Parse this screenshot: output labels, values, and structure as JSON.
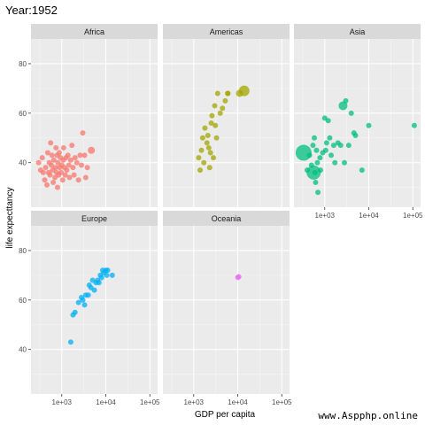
{
  "chart_data": {
    "type": "scatter",
    "title": "Year:1952",
    "xlabel": "GDP per capita",
    "ylabel": "life expecttancy",
    "x_scale": "log10",
    "xlim": [
      200,
      150000
    ],
    "ylim": [
      22,
      90
    ],
    "x_ticks": [
      1000,
      10000,
      100000
    ],
    "x_tick_labels": [
      "1e+03",
      "1e+04",
      "1e+05"
    ],
    "y_ticks": [
      40,
      60,
      80
    ],
    "y_tick_labels": [
      "40",
      "60",
      "80"
    ],
    "grid": true,
    "facets": [
      {
        "name": "Africa",
        "color": "#F8766D",
        "points": [
          [
            298,
            40
          ],
          [
            330,
            37
          ],
          [
            360,
            42
          ],
          [
            380,
            36
          ],
          [
            410,
            33
          ],
          [
            430,
            38
          ],
          [
            460,
            31
          ],
          [
            480,
            44
          ],
          [
            500,
            36
          ],
          [
            520,
            40
          ],
          [
            540,
            35
          ],
          [
            560,
            48
          ],
          [
            580,
            39
          ],
          [
            600,
            43
          ],
          [
            620,
            37
          ],
          [
            640,
            32
          ],
          [
            660,
            41
          ],
          [
            700,
            34
          ],
          [
            720,
            38
          ],
          [
            740,
            46
          ],
          [
            760,
            36
          ],
          [
            780,
            43
          ],
          [
            800,
            30
          ],
          [
            820,
            40
          ],
          [
            850,
            35
          ],
          [
            880,
            44
          ],
          [
            900,
            38
          ],
          [
            940,
            42
          ],
          [
            970,
            36
          ],
          [
            1000,
            39
          ],
          [
            1050,
            33
          ],
          [
            1080,
            41
          ],
          [
            1100,
            46
          ],
          [
            1150,
            38
          ],
          [
            1200,
            35
          ],
          [
            1250,
            42
          ],
          [
            1300,
            37
          ],
          [
            1380,
            43
          ],
          [
            1450,
            39
          ],
          [
            1500,
            34
          ],
          [
            1600,
            41
          ],
          [
            1700,
            47
          ],
          [
            1800,
            38
          ],
          [
            1900,
            35
          ],
          [
            2000,
            42
          ],
          [
            2200,
            40
          ],
          [
            2400,
            33
          ],
          [
            2600,
            43
          ],
          [
            2800,
            39
          ],
          [
            3000,
            52
          ],
          [
            3300,
            43
          ],
          [
            3500,
            34
          ],
          [
            3800,
            38
          ],
          [
            4700,
            45
          ]
        ],
        "sizes": [
          3,
          3,
          3,
          3,
          3,
          3,
          3,
          3,
          3,
          3,
          3,
          3,
          3,
          3,
          3,
          3,
          3,
          3,
          3,
          3,
          3,
          3,
          3,
          3,
          3,
          3,
          3,
          3,
          3,
          3,
          3,
          3,
          3,
          3,
          3,
          3,
          3,
          3,
          3,
          3,
          3,
          3,
          3,
          3,
          3,
          3,
          3,
          3,
          3,
          3,
          3,
          3,
          3,
          4
        ]
      },
      {
        "name": "Americas",
        "color": "#A3A500",
        "points": [
          [
            1300,
            42
          ],
          [
            1400,
            37
          ],
          [
            1500,
            45
          ],
          [
            1600,
            50
          ],
          [
            1700,
            40
          ],
          [
            1800,
            54
          ],
          [
            2000,
            48
          ],
          [
            2100,
            51
          ],
          [
            2200,
            46
          ],
          [
            2300,
            38
          ],
          [
            2400,
            44
          ],
          [
            2500,
            56
          ],
          [
            2600,
            59
          ],
          [
            2800,
            42
          ],
          [
            3000,
            63
          ],
          [
            3100,
            55
          ],
          [
            3300,
            50
          ],
          [
            3500,
            68
          ],
          [
            4000,
            60
          ],
          [
            4500,
            62
          ],
          [
            5200,
            65
          ],
          [
            5900,
            68
          ],
          [
            6000,
            68
          ],
          [
            11000,
            68
          ],
          [
            13990,
            69
          ]
        ],
        "sizes": [
          3,
          3,
          3,
          3,
          3,
          3,
          3,
          3,
          3,
          3,
          3,
          3,
          3,
          3,
          3,
          3,
          3,
          3,
          3,
          3,
          3,
          3,
          3,
          4,
          6
        ]
      },
      {
        "name": "Asia",
        "color": "#00BF7D",
        "points": [
          [
            331,
            44
          ],
          [
            400,
            37
          ],
          [
            450,
            43
          ],
          [
            500,
            39
          ],
          [
            540,
            47
          ],
          [
            560,
            36
          ],
          [
            580,
            50
          ],
          [
            600,
            36
          ],
          [
            620,
            32
          ],
          [
            650,
            45
          ],
          [
            680,
            40
          ],
          [
            700,
            28
          ],
          [
            780,
            42
          ],
          [
            800,
            37
          ],
          [
            900,
            44
          ],
          [
            1000,
            58
          ],
          [
            1050,
            45
          ],
          [
            1100,
            48
          ],
          [
            1200,
            57
          ],
          [
            1300,
            50
          ],
          [
            1400,
            43
          ],
          [
            1600,
            47
          ],
          [
            1700,
            40
          ],
          [
            2000,
            48
          ],
          [
            2300,
            47
          ],
          [
            2600,
            63
          ],
          [
            2800,
            40
          ],
          [
            3000,
            65
          ],
          [
            3500,
            47
          ],
          [
            4000,
            60
          ],
          [
            5000,
            51
          ],
          [
            7000,
            37
          ],
          [
            10000,
            55
          ],
          [
            108000,
            55
          ],
          [
            4600,
            52
          ]
        ],
        "sizes": [
          9,
          3,
          3,
          3,
          3,
          8,
          3,
          3,
          3,
          3,
          3,
          3,
          3,
          3,
          3,
          3,
          3,
          3,
          3,
          3,
          3,
          3,
          3,
          3,
          3,
          5,
          3,
          3,
          3,
          3,
          3,
          3,
          3,
          3,
          3
        ]
      },
      {
        "name": "Europe",
        "color": "#00B0F6",
        "points": [
          [
            1600,
            43
          ],
          [
            1800,
            54
          ],
          [
            2000,
            55
          ],
          [
            2400,
            59
          ],
          [
            2800,
            61
          ],
          [
            3000,
            60
          ],
          [
            3300,
            58
          ],
          [
            3500,
            62
          ],
          [
            4000,
            62
          ],
          [
            4200,
            66
          ],
          [
            4600,
            65
          ],
          [
            5000,
            68
          ],
          [
            5500,
            64
          ],
          [
            6000,
            67
          ],
          [
            6500,
            68
          ],
          [
            7000,
            67
          ],
          [
            7500,
            70
          ],
          [
            8000,
            69
          ],
          [
            8500,
            72
          ],
          [
            9000,
            71
          ],
          [
            10000,
            72
          ],
          [
            10500,
            70
          ],
          [
            11000,
            72
          ],
          [
            14000,
            70
          ]
        ],
        "sizes": [
          3,
          3,
          3,
          3,
          3,
          3,
          3,
          3,
          3,
          3,
          3,
          3,
          3,
          3,
          3,
          3,
          3,
          3,
          3,
          3,
          3,
          3,
          3,
          3
        ]
      },
      {
        "name": "Oceania",
        "color": "#E76BF3",
        "points": [
          [
            10040,
            69.1
          ],
          [
            10560,
            69.4
          ]
        ],
        "sizes": [
          3,
          3
        ]
      }
    ]
  },
  "watermark": "www.Aspphp.online"
}
